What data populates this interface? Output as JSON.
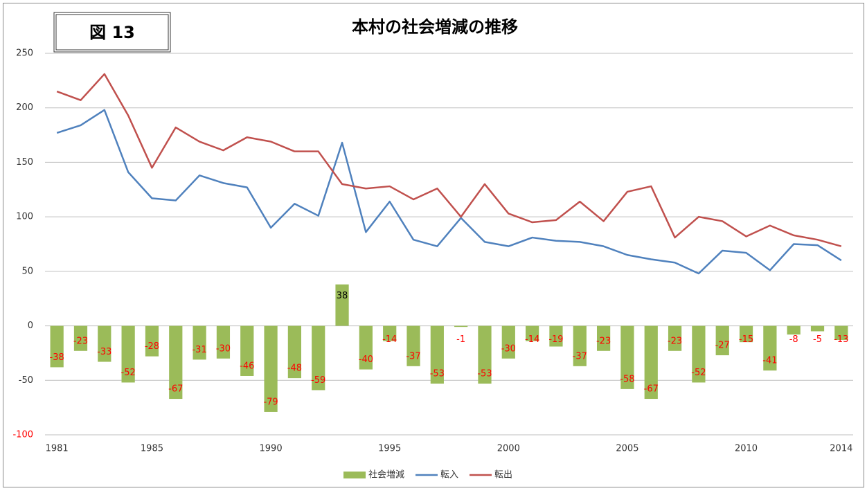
{
  "figure_label": "図 13",
  "chart_data": {
    "type": "bar-line",
    "title": "本村の社会増減の推移",
    "categories": [
      "1981",
      null,
      null,
      null,
      "1985",
      null,
      null,
      null,
      null,
      "1990",
      null,
      null,
      null,
      null,
      "1995",
      null,
      null,
      null,
      null,
      "2000",
      null,
      null,
      null,
      null,
      "2005",
      null,
      null,
      null,
      null,
      "2010",
      null,
      null,
      null,
      "2014"
    ],
    "series": [
      {
        "name": "社会増減",
        "type": "bar",
        "color": "#9bbb59",
        "values": [
          -38,
          -23,
          -33,
          -52,
          -28,
          -67,
          -31,
          -30,
          -46,
          -79,
          -48,
          -59,
          38,
          -40,
          -14,
          -37,
          -53,
          -1,
          -53,
          -30,
          -14,
          -19,
          -37,
          -23,
          -58,
          -67,
          -23,
          -52,
          -27,
          -15,
          -41,
          -8,
          -5,
          -13
        ]
      },
      {
        "name": "転入",
        "type": "line",
        "color": "#4f81bd",
        "values": [
          177,
          184,
          198,
          141,
          117,
          115,
          138,
          131,
          127,
          90,
          112,
          101,
          168,
          86,
          114,
          79,
          73,
          99,
          77,
          73,
          81,
          78,
          77,
          73,
          65,
          61,
          58,
          48,
          69,
          67,
          51,
          75,
          74,
          60
        ]
      },
      {
        "name": "転出",
        "type": "line",
        "color": "#c0504d",
        "values": [
          215,
          207,
          231,
          193,
          145,
          182,
          169,
          161,
          173,
          169,
          160,
          160,
          130,
          126,
          128,
          116,
          126,
          100,
          130,
          103,
          95,
          97,
          114,
          96,
          123,
          128,
          81,
          100,
          96,
          82,
          92,
          83,
          79,
          73
        ]
      }
    ],
    "ylim": [
      -100,
      250
    ],
    "yticks": [
      -100,
      -50,
      0,
      50,
      100,
      150,
      200,
      250
    ],
    "grid": true,
    "legend": "bottom",
    "negative_label_color": "#ff0000"
  }
}
